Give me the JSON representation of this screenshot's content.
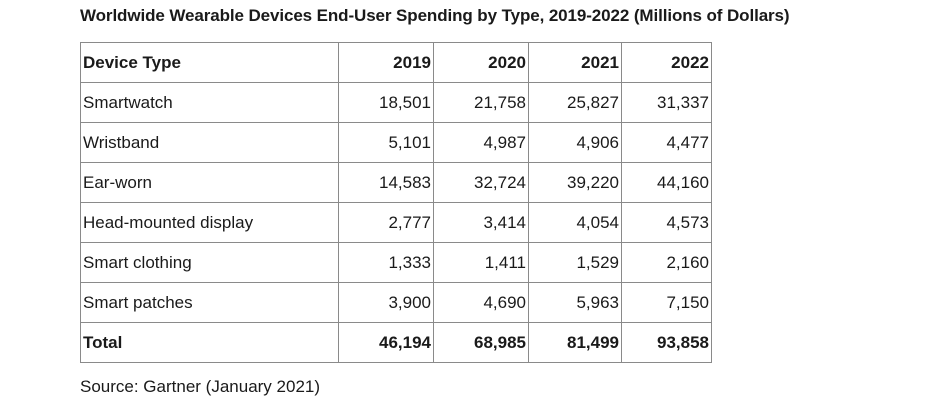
{
  "title": "Worldwide Wearable Devices End-User Spending by Type, 2019-2022 (Millions of Dollars)",
  "table": {
    "headers": [
      "Device Type",
      "2019",
      "2020",
      "2021",
      "2022"
    ],
    "rows": [
      [
        "Smartwatch",
        "18,501",
        "21,758",
        "25,827",
        "31,337"
      ],
      [
        "Wristband",
        "5,101",
        "4,987",
        "4,906",
        "4,477"
      ],
      [
        "Ear-worn",
        "14,583",
        "32,724",
        "39,220",
        "44,160"
      ],
      [
        "Head-mounted display",
        "2,777",
        "3,414",
        "4,054",
        "4,573"
      ],
      [
        "Smart clothing",
        "1,333",
        "1,411",
        "1,529",
        "2,160"
      ],
      [
        "Smart patches",
        "3,900",
        "4,690",
        "5,963",
        "7,150"
      ],
      [
        "Total",
        "46,194",
        "68,985",
        "81,499",
        "93,858"
      ]
    ]
  },
  "source": "Source: Gartner (January 2021)"
}
